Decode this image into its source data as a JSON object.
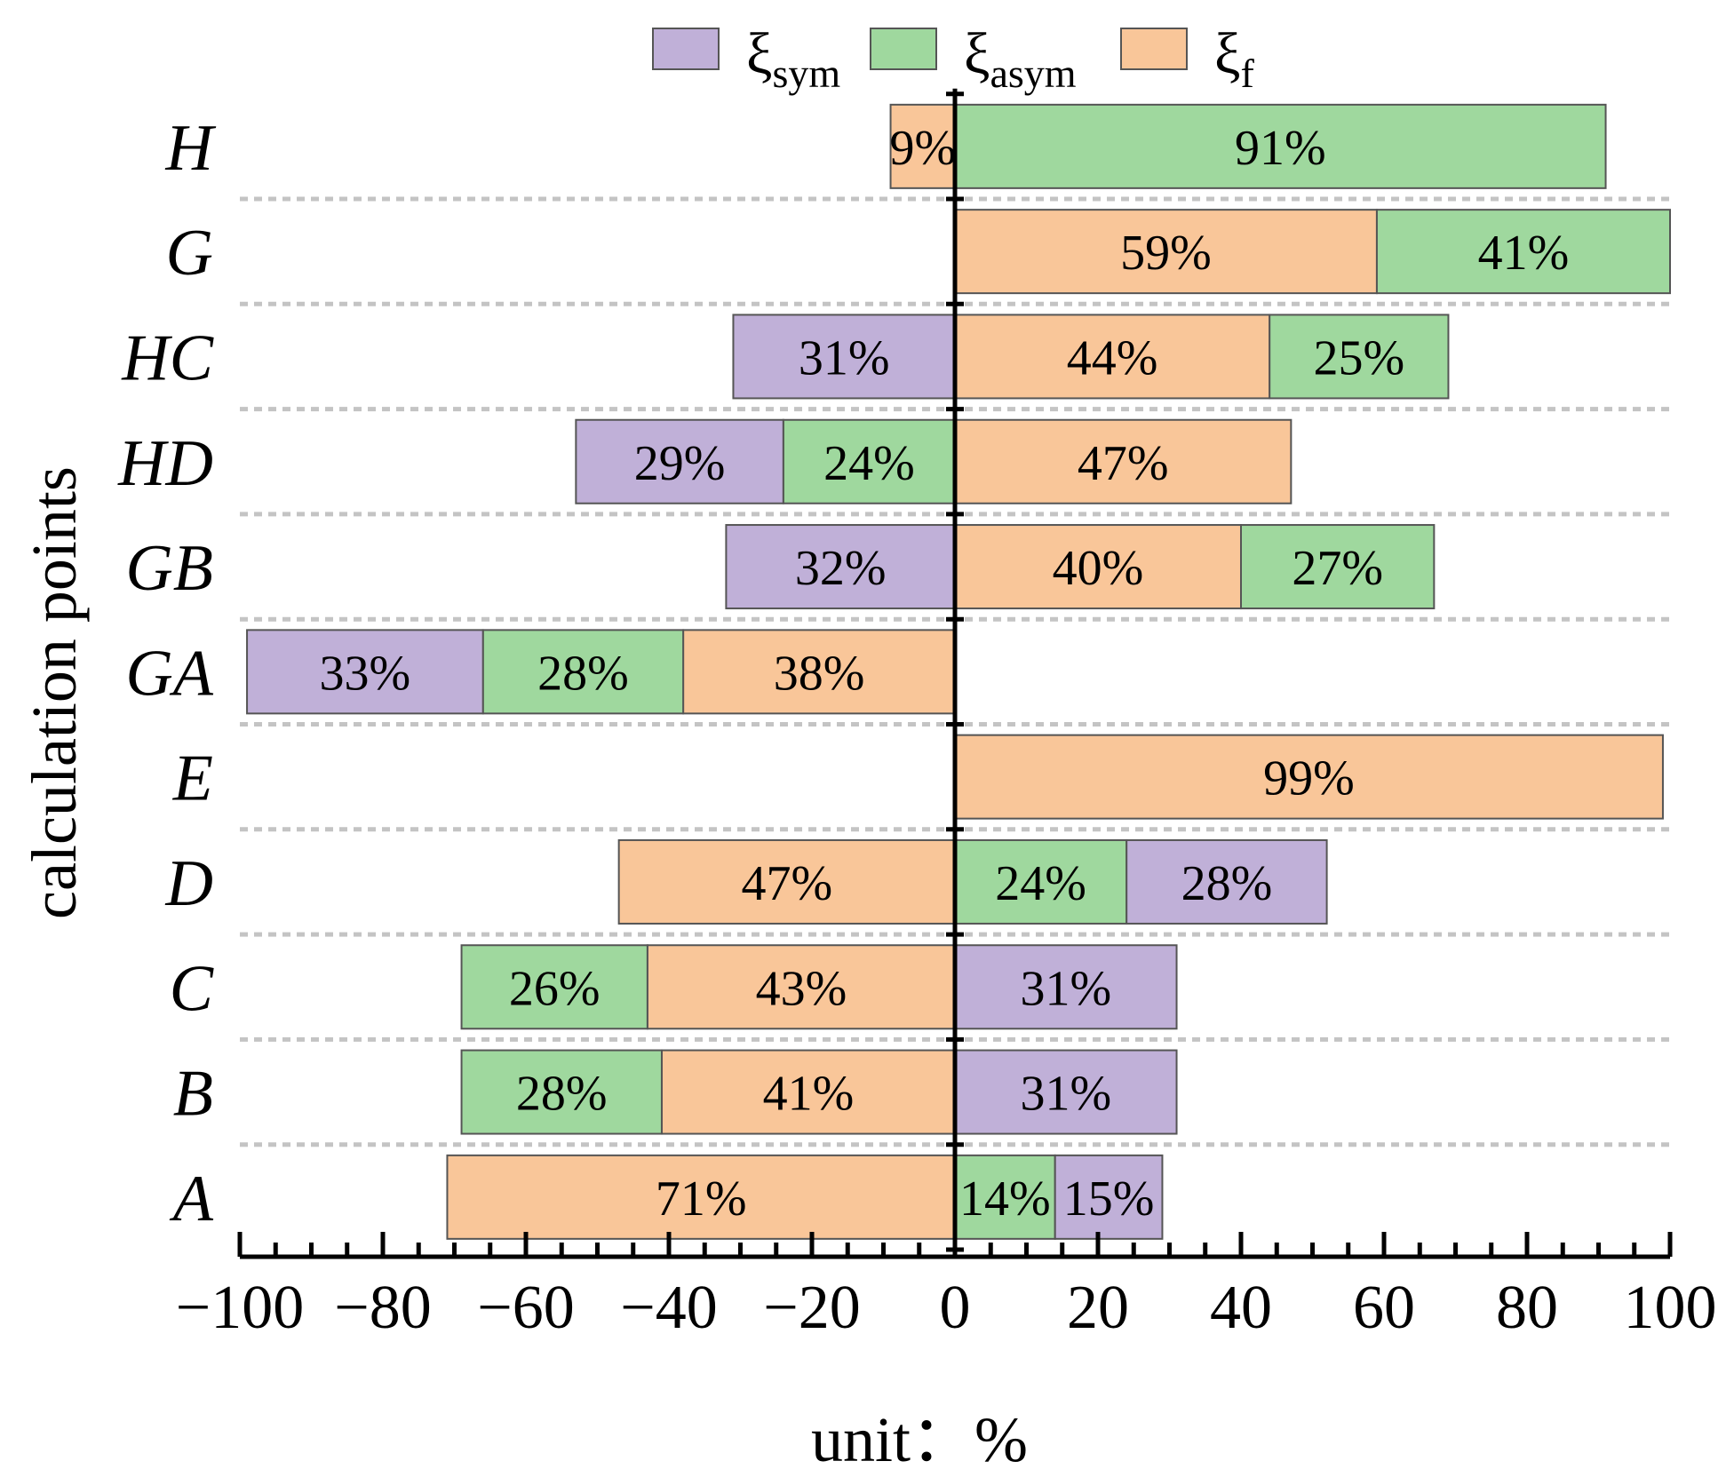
{
  "chart_data": {
    "type": "bar",
    "orientation": "horizontal-diverging-stacked",
    "xlabel": "unit：%",
    "ylabel": "calculation points",
    "xlim": [
      -100,
      100
    ],
    "x_ticks": [
      -100,
      -80,
      -60,
      -40,
      -20,
      0,
      20,
      40,
      60,
      80,
      100
    ],
    "x_tick_labels": [
      "−100",
      "−80",
      "−60",
      "−40",
      "−20",
      "0",
      "20",
      "40",
      "60",
      "80",
      "100"
    ],
    "grid": "horizontal dashed",
    "legend_position": "top",
    "legend": [
      {
        "key": "sym",
        "symbol": "ξ",
        "subscript": "sym",
        "color": "#c0b0d8"
      },
      {
        "key": "asym",
        "symbol": "ξ",
        "subscript": "asym",
        "color": "#9fd89e"
      },
      {
        "key": "f",
        "symbol": "ξ",
        "subscript": "f",
        "color": "#f9c699"
      }
    ],
    "categories": [
      "A",
      "B",
      "C",
      "D",
      "E",
      "GA",
      "GB",
      "HD",
      "HC",
      "G",
      "H"
    ],
    "rows": [
      {
        "category": "A",
        "negative": [
          {
            "series": "f",
            "value": 71
          }
        ],
        "positive": [
          {
            "series": "asym",
            "value": 14
          },
          {
            "series": "sym",
            "value": 15
          }
        ]
      },
      {
        "category": "B",
        "negative": [
          {
            "series": "f",
            "value": 41
          },
          {
            "series": "asym",
            "value": 28
          }
        ],
        "positive": [
          {
            "series": "sym",
            "value": 31
          }
        ]
      },
      {
        "category": "C",
        "negative": [
          {
            "series": "f",
            "value": 43
          },
          {
            "series": "asym",
            "value": 26
          }
        ],
        "positive": [
          {
            "series": "sym",
            "value": 31
          }
        ]
      },
      {
        "category": "D",
        "negative": [
          {
            "series": "f",
            "value": 47
          }
        ],
        "positive": [
          {
            "series": "asym",
            "value": 24
          },
          {
            "series": "sym",
            "value": 28
          }
        ]
      },
      {
        "category": "E",
        "negative": [],
        "positive": [
          {
            "series": "f",
            "value": 99
          }
        ]
      },
      {
        "category": "GA",
        "negative": [
          {
            "series": "f",
            "value": 38
          },
          {
            "series": "asym",
            "value": 28
          },
          {
            "series": "sym",
            "value": 33
          }
        ],
        "positive": []
      },
      {
        "category": "GB",
        "negative": [
          {
            "series": "sym",
            "value": 32
          }
        ],
        "positive": [
          {
            "series": "f",
            "value": 40
          },
          {
            "series": "asym",
            "value": 27
          }
        ]
      },
      {
        "category": "HD",
        "negative": [
          {
            "series": "asym",
            "value": 24
          },
          {
            "series": "sym",
            "value": 29
          }
        ],
        "positive": [
          {
            "series": "f",
            "value": 47
          }
        ]
      },
      {
        "category": "HC",
        "negative": [
          {
            "series": "sym",
            "value": 31
          }
        ],
        "positive": [
          {
            "series": "f",
            "value": 44
          },
          {
            "series": "asym",
            "value": 25
          }
        ]
      },
      {
        "category": "G",
        "negative": [],
        "positive": [
          {
            "series": "f",
            "value": 59
          },
          {
            "series": "asym",
            "value": 41
          }
        ]
      },
      {
        "category": "H",
        "negative": [
          {
            "series": "f",
            "value": 9
          }
        ],
        "positive": [
          {
            "series": "asym",
            "value": 91
          }
        ]
      }
    ]
  }
}
